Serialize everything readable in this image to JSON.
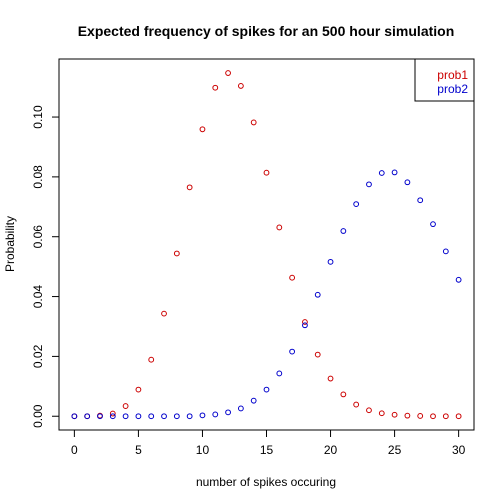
{
  "chart_data": {
    "type": "scatter",
    "title": "Expected frequency of spikes for an 500 hour simulation",
    "xlabel": "number of spikes occuring",
    "ylabel": "Probability",
    "xlim": [
      -1.2,
      31.2
    ],
    "ylim": [
      -0.0046,
      0.1194
    ],
    "xticks": [
      0,
      5,
      10,
      15,
      20,
      25,
      30
    ],
    "xtick_labels": [
      "0",
      "5",
      "10",
      "15",
      "20",
      "25",
      "30"
    ],
    "yticks": [
      0,
      0.02,
      0.04,
      0.06,
      0.08,
      0.1
    ],
    "ytick_labels": [
      "0.00",
      "0.02",
      "0.04",
      "0.06",
      "0.08",
      "0.10"
    ],
    "grid": false,
    "legend_position": "top-right",
    "x": [
      0,
      1,
      2,
      3,
      4,
      5,
      6,
      7,
      8,
      9,
      10,
      11,
      12,
      13,
      14,
      15,
      16,
      17,
      18,
      19,
      20,
      21,
      22,
      23,
      24,
      25,
      26,
      27,
      28,
      29,
      30
    ],
    "series": [
      {
        "name": "prob1",
        "color": "#cc0000",
        "values": [
          0.0,
          0.0,
          0.0002,
          0.0009,
          0.0034,
          0.0089,
          0.0189,
          0.0343,
          0.0544,
          0.0765,
          0.0959,
          0.1098,
          0.1147,
          0.1104,
          0.0982,
          0.0814,
          0.0631,
          0.0463,
          0.0315,
          0.0206,
          0.0126,
          0.0073,
          0.0039,
          0.002,
          0.001,
          0.0005,
          0.0002,
          0.0001,
          0.0,
          0.0,
          0.0
        ]
      },
      {
        "name": "prob2",
        "color": "#0000cc",
        "values": [
          0.0,
          0.0,
          0.0,
          0.0,
          0.0,
          0.0,
          0.0,
          0.0,
          0.0,
          0.0,
          0.0003,
          0.0006,
          0.0013,
          0.0026,
          0.0052,
          0.0089,
          0.0143,
          0.0216,
          0.0304,
          0.0406,
          0.0516,
          0.0619,
          0.0709,
          0.0775,
          0.0813,
          0.0815,
          0.0782,
          0.0722,
          0.0642,
          0.0551,
          0.0456
        ]
      }
    ]
  }
}
